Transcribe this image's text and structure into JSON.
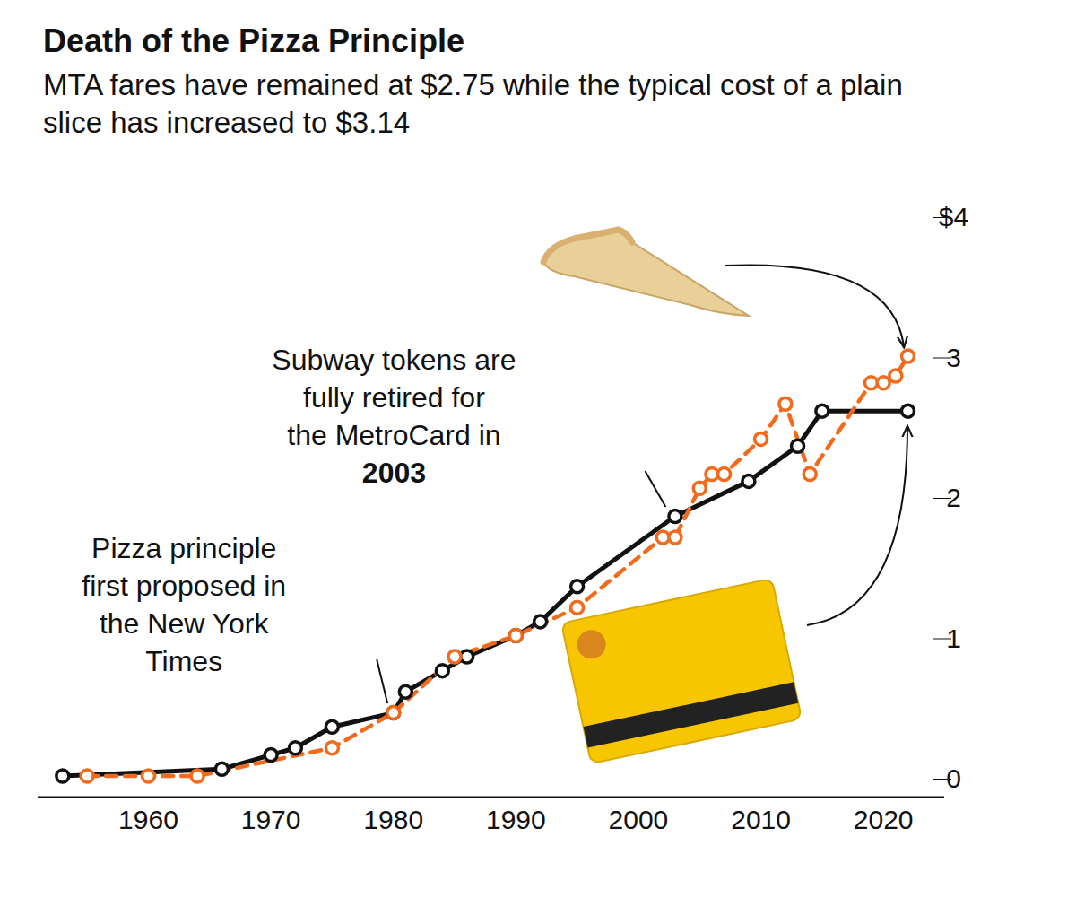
{
  "chart_data": {
    "type": "line",
    "title": "Death of the Pizza Principle",
    "subtitle": "MTA fares have remained at $2.75 while the typical cost of a plain slice has increased to $3.14",
    "series": [
      {
        "color": "#111111",
        "marker": "circle",
        "line_style": "solid",
        "x": [
          1953,
          1966,
          1970,
          1972,
          1975,
          1980,
          1981,
          1984,
          1986,
          1990,
          1992,
          1995,
          2003,
          2009,
          2013,
          2015,
          2022
        ],
        "values": [
          0.15,
          0.2,
          0.3,
          0.35,
          0.5,
          0.6,
          0.75,
          0.9,
          1.0,
          1.15,
          1.25,
          1.5,
          2.0,
          2.25,
          2.5,
          2.75,
          2.75
        ]
      },
      {
        "color": "#F26A1B",
        "marker": "circle",
        "line_style": "dashed",
        "x": [
          1955,
          1960,
          1964,
          1975,
          1980,
          1985,
          1990,
          1995,
          2002,
          2003,
          2005,
          2006,
          2007,
          2010,
          2012,
          2014,
          2019,
          2020,
          2021,
          2022
        ],
        "values": [
          0.15,
          0.15,
          0.15,
          0.35,
          0.6,
          1.0,
          1.15,
          1.35,
          1.85,
          1.85,
          2.2,
          2.3,
          2.3,
          2.55,
          2.8,
          2.3,
          2.95,
          2.95,
          3.0,
          3.14
        ]
      }
    ],
    "xlim": [
      1951,
      2025
    ],
    "xticks": [
      1960,
      1970,
      1980,
      1990,
      2000,
      2010,
      2020
    ],
    "ylim": [
      0,
      4
    ],
    "yticks": [
      0,
      1,
      2,
      3,
      {
        "value": 4,
        "label": "$4"
      }
    ],
    "grid": false,
    "annotations": [
      {
        "text": "Pizza principle first proposed in the New York Times",
        "x": 1980,
        "y": 0.6
      },
      {
        "text": "Subway tokens are fully retired for the MetroCard in 2003",
        "x": 2003,
        "y": 2.0
      }
    ]
  }
}
